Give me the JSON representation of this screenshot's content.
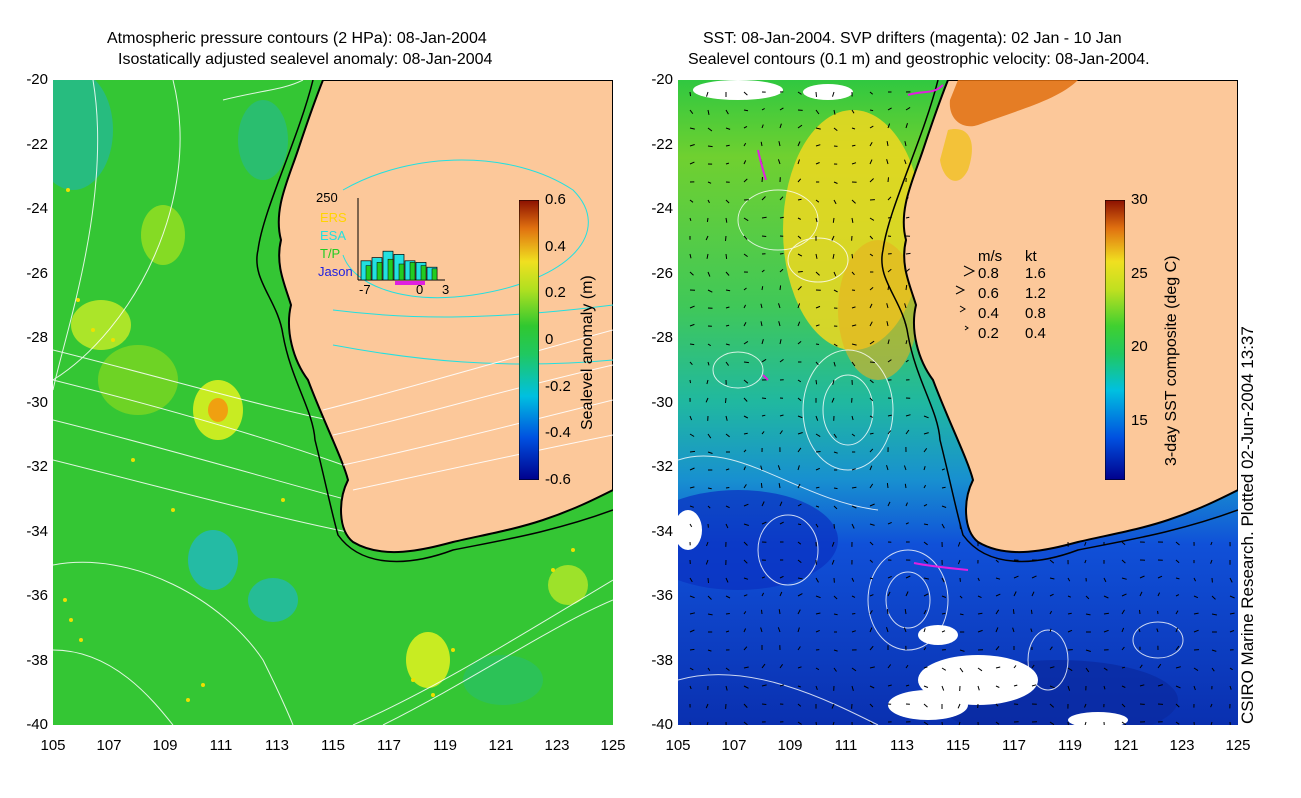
{
  "left_panel": {
    "title_line1": "Atmospheric pressure contours (2 HPa): 08-Jan-2004",
    "title_line2": "Isostatically adjusted sealevel anomaly: 08-Jan-2004",
    "y_ticks": [
      "-20",
      "-22",
      "-24",
      "-26",
      "-28",
      "-30",
      "-32",
      "-34",
      "-36",
      "-38",
      "-40"
    ],
    "x_ticks": [
      "105",
      "107",
      "109",
      "111",
      "113",
      "115",
      "117",
      "119",
      "121",
      "123",
      "125"
    ],
    "colorbar": {
      "label": "Sealevel anomaly (m)",
      "ticks": [
        "0.6",
        "0.4",
        "0.2",
        "0",
        "-0.2",
        "-0.4",
        "-0.6"
      ],
      "range": [
        -0.6,
        0.6
      ]
    },
    "inset": {
      "y_max_label": "250",
      "x_labels": [
        "-7",
        "0",
        "3"
      ],
      "legend": [
        {
          "name": "ERS",
          "color": "#ffd400"
        },
        {
          "name": "ESA",
          "color": "#22e0e0"
        },
        {
          "name": "T/P",
          "color": "#22cc22"
        },
        {
          "name": "Jason",
          "color": "#2020e0"
        }
      ],
      "bars_cyan": [
        60,
        70,
        90,
        80,
        60,
        55,
        40
      ],
      "bars_green": [
        45,
        55,
        65,
        50,
        55,
        45,
        35
      ]
    }
  },
  "right_panel": {
    "title_line1": "SST: 08-Jan-2004. SVP drifters (magenta): 02 Jan - 10 Jan",
    "title_line2": "Sealevel contours (0.1 m) and geostrophic velocity: 08-Jan-2004.",
    "y_ticks": [
      "-20",
      "-22",
      "-24",
      "-26",
      "-28",
      "-30",
      "-32",
      "-34",
      "-36",
      "-38",
      "-40"
    ],
    "x_ticks": [
      "105",
      "107",
      "109",
      "111",
      "113",
      "115",
      "117",
      "119",
      "121",
      "123",
      "125"
    ],
    "colorbar": {
      "label": "3-day SST composite (deg C)",
      "ticks": [
        "30",
        "25",
        "20",
        "15"
      ],
      "range": [
        11,
        30
      ]
    },
    "velocity_legend": {
      "header_ms": "m/s",
      "header_kt": "kt",
      "rows": [
        {
          "ms": "0.8",
          "kt": "1.6"
        },
        {
          "ms": "0.6",
          "kt": "1.2"
        },
        {
          "ms": "0.4",
          "kt": "0.8"
        },
        {
          "ms": "0.2",
          "kt": "0.4"
        }
      ]
    }
  },
  "credit": "CSIRO Marine Research. Plotted 02-Jun-2004 13:37",
  "colors": {
    "land": "#fcc89a",
    "sla_green": "#2ec82e",
    "sst_blue": "#1040d0",
    "sst_yellow": "#f0e020",
    "drifter": "#e020e0"
  }
}
